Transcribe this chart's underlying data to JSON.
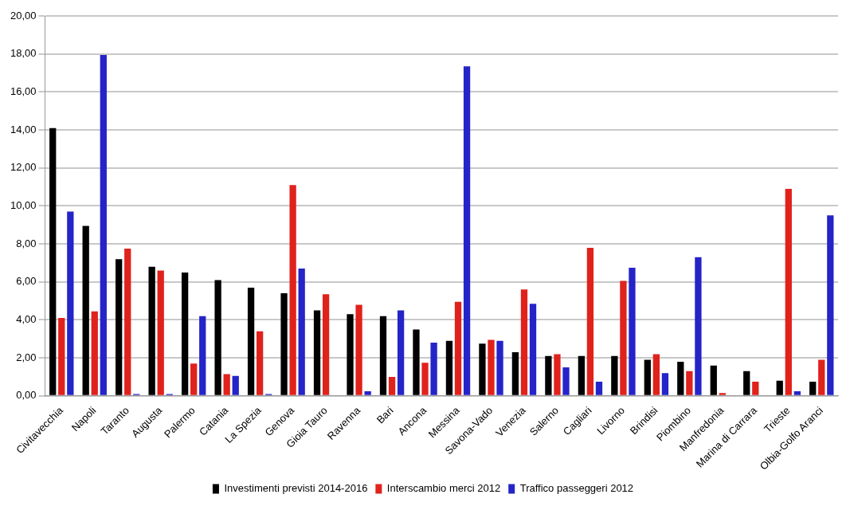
{
  "chart_data": {
    "type": "bar",
    "categories": [
      "Civitavecchia",
      "Napoli",
      "Taranto",
      "Augusta",
      "Palermo",
      "Catania",
      "La Spezia",
      "Genova",
      "Gioia Tauro",
      "Ravenna",
      "Bari",
      "Ancona",
      "Messina",
      "Savona-Vado",
      "Venezia",
      "Salerno",
      "Cagliari",
      "Livorno",
      "Brindisi",
      "Piombino",
      "Manfredonia",
      "Marina di Carrara",
      "Trieste",
      "Olbia-Golfo Aranci"
    ],
    "series": [
      {
        "name": "Investimenti previsti 2014-2016",
        "color": "#000000",
        "values": [
          14.1,
          8.95,
          7.2,
          6.8,
          6.5,
          6.1,
          5.7,
          5.4,
          4.5,
          4.3,
          4.2,
          3.5,
          2.9,
          2.75,
          2.3,
          2.1,
          2.1,
          2.1,
          1.9,
          1.8,
          1.6,
          1.3,
          0.8,
          0.75
        ]
      },
      {
        "name": "Interscambio merci 2012",
        "color": "#e0221c",
        "values": [
          4.1,
          4.45,
          7.75,
          6.6,
          1.7,
          1.15,
          3.4,
          11.1,
          5.35,
          4.8,
          1.0,
          1.75,
          4.95,
          2.95,
          5.6,
          2.2,
          7.8,
          6.05,
          2.2,
          1.3,
          0.15,
          0.75,
          10.9,
          1.9
        ]
      },
      {
        "name": "Traffico passeggeri 2012",
        "color": "#2424c8",
        "values": [
          9.7,
          17.95,
          0.1,
          0.1,
          4.2,
          1.05,
          0.1,
          6.7,
          null,
          0.25,
          4.5,
          2.8,
          17.35,
          2.9,
          4.85,
          1.5,
          0.75,
          6.75,
          1.2,
          7.3,
          null,
          null,
          0.25,
          9.5
        ]
      }
    ],
    "ylim": [
      0,
      20
    ],
    "yticks": [
      {
        "value": 0,
        "label": "0,00"
      },
      {
        "value": 2,
        "label": "2,00"
      },
      {
        "value": 4,
        "label": "4,00"
      },
      {
        "value": 6,
        "label": "6,00"
      },
      {
        "value": 8,
        "label": "8,00"
      },
      {
        "value": 10,
        "label": "10,00"
      },
      {
        "value": 12,
        "label": "12,00"
      },
      {
        "value": 14,
        "label": "14,00"
      },
      {
        "value": 16,
        "label": "16,00"
      },
      {
        "value": 18,
        "label": "18,00"
      },
      {
        "value": 20,
        "label": "20,00"
      }
    ],
    "grid": "y",
    "legend": "bottom"
  }
}
